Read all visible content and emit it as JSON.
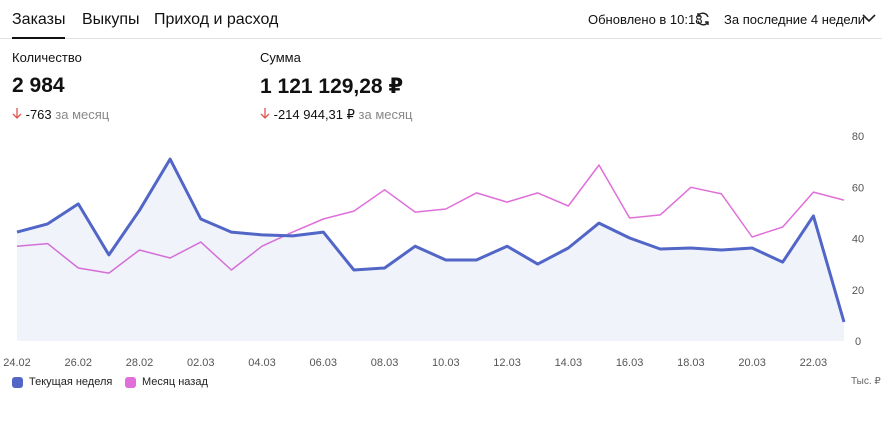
{
  "tabs": [
    "Заказы",
    "Выкупы",
    "Приход и расход"
  ],
  "status": "Обновлено в 10:18",
  "period": "За последние 4 недели",
  "metrics": [
    {
      "label": "Количество",
      "value": "2 984",
      "change": "-763",
      "change_note": "за месяц"
    },
    {
      "label": "Сумма",
      "value": "1 121 129,28 ₽",
      "change": "-214 944,31 ₽",
      "change_note": "за месяц"
    }
  ],
  "chart_data": {
    "type": "line",
    "unit_label": "Тыс. ₽",
    "categories": [
      "24.02",
      null,
      "26.02",
      null,
      "28.02",
      null,
      "02.03",
      null,
      "04.03",
      null,
      "06.03",
      null,
      "08.03",
      null,
      "10.03",
      null,
      "12.03",
      null,
      "14.03",
      null,
      "16.03",
      null,
      "18.03",
      null,
      "20.03",
      null,
      "22.03",
      null
    ],
    "series": [
      {
        "name": "Текущая неделя",
        "color": "#5166c6",
        "area": true,
        "values": [
          42.5,
          45.7,
          53.5,
          33.6,
          51,
          71,
          47.6,
          42.5,
          41.4,
          41,
          42.5,
          27.7,
          28.5,
          37,
          31.6,
          31.6,
          37,
          30,
          36.3,
          46,
          40.2,
          35.9,
          36.3,
          35.5,
          36.3,
          30.8,
          48.8,
          7.4
        ]
      },
      {
        "name": "Месяц назад",
        "color": "#e06fd9",
        "values": [
          37,
          38,
          28.5,
          26.5,
          35.5,
          32.4,
          38.6,
          27.7,
          37,
          42.5,
          47.6,
          50.7,
          59,
          50.3,
          51.5,
          57.8,
          54.2,
          57.8,
          52.7,
          68.7,
          48,
          49.2,
          60,
          57.4,
          40.6,
          44.5,
          58.1,
          55
        ]
      }
    ],
    "ylim": [
      0,
      80
    ],
    "yticks": [
      0,
      20,
      40,
      60,
      80
    ]
  }
}
